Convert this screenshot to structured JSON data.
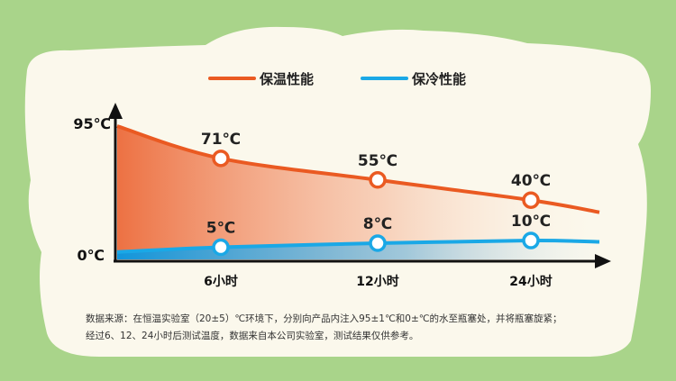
{
  "legend": [
    {
      "name": "保温性能",
      "color": "#ea5a22"
    },
    {
      "name": "保冷性能",
      "color": "#1aa8e6"
    }
  ],
  "chart_data": {
    "type": "area",
    "x_ticks": [
      "6小时",
      "12小时",
      "24小时"
    ],
    "y_ticks": [
      "95℃",
      "0℃"
    ],
    "ylim": [
      0,
      95
    ],
    "series": [
      {
        "name": "保温性能",
        "color": "#ea5a22",
        "points": [
          {
            "x": "6小时",
            "y": 71,
            "label": "71℃"
          },
          {
            "x": "12小时",
            "y": 55,
            "label": "55℃"
          },
          {
            "x": "24小时",
            "y": 40,
            "label": "40℃"
          }
        ]
      },
      {
        "name": "保冷性能",
        "color": "#1aa8e6",
        "points": [
          {
            "x": "6小时",
            "y": 5,
            "label": "5℃"
          },
          {
            "x": "12小时",
            "y": 8,
            "label": "8℃"
          },
          {
            "x": "24小时",
            "y": 10,
            "label": "10℃"
          }
        ]
      }
    ]
  },
  "footnote": {
    "line1": "数据来源：在恒温实验室（20±5）℃环境下，分别向产品内注入95±1℃和0±℃的水至瓶塞处，并将瓶塞旋紧；",
    "line2": "经过6、12、24小时后测试温度，数据来自本公司实验室，测试结果仅供参考。"
  },
  "colors": {
    "background": "#a9d48a",
    "panel": "#fbf8ec",
    "hot": "#ea5a22",
    "cold": "#1aa8e6"
  }
}
